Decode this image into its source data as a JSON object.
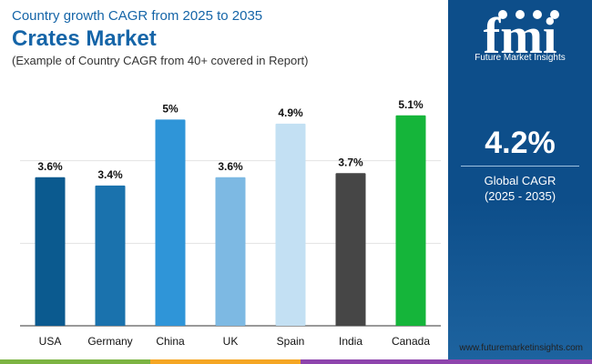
{
  "header": {
    "subtitle": "Country growth CAGR from 2025 to 2035",
    "title": "Crates Market",
    "note": "(Example of Country CAGR from 40+ covered in Report)"
  },
  "side": {
    "logo_letters": "fmi",
    "logo_text": "Future Market Insights",
    "cagr_value": "4.2%",
    "cagr_label": "Global CAGR",
    "cagr_range": "(2025 - 2035)"
  },
  "footer": {
    "url": "www.futuremarketinsights.com"
  },
  "colors": {
    "brand_blue": "#1565a8",
    "sidebar": "#0d4e8a",
    "strip": [
      "#7cb342",
      "#f5a623",
      "#8e44ad"
    ]
  },
  "chart_data": {
    "type": "bar",
    "title": "",
    "xlabel": "",
    "ylabel": "",
    "ylim": [
      0,
      6
    ],
    "grid": true,
    "categories": [
      "USA",
      "Germany",
      "China",
      "UK",
      "Spain",
      "India",
      "Canada"
    ],
    "values": [
      3.6,
      3.4,
      5,
      3.6,
      4.9,
      3.7,
      5.1
    ],
    "labels": [
      "3.6%",
      "3.4%",
      "5%",
      "3.6%",
      "4.9%",
      "3.7%",
      "5.1%"
    ],
    "colors": [
      "#0b5a8f",
      "#1a72ad",
      "#2f95d8",
      "#7db9e3",
      "#c3e0f3",
      "#464646",
      "#15b53a"
    ]
  }
}
